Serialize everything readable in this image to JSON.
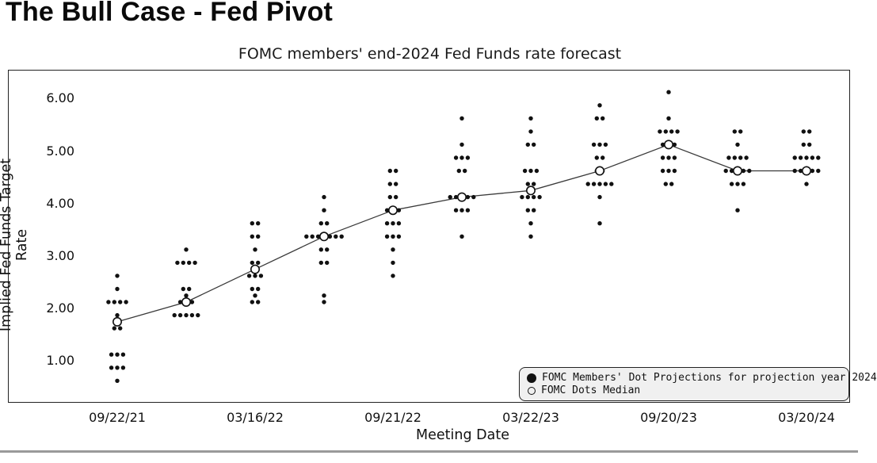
{
  "page_title": "The Bull Case - Fed Pivot",
  "chart_data": {
    "type": "scatter",
    "title": "FOMC members' end-2024 Fed Funds rate forecast",
    "xlabel": "Meeting Date",
    "ylabel": "Implied Fed Funds Target Rate",
    "ylim": [
      0.4,
      6.45
    ],
    "grid": false,
    "y_ticks": [
      "1.00",
      "2.00",
      "3.00",
      "4.00",
      "5.00",
      "6.00"
    ],
    "x_tick_labels": [
      "09/22/21",
      "03/16/22",
      "09/21/22",
      "03/22/23",
      "09/20/23",
      "03/20/24"
    ],
    "legend_position": "bottom-right",
    "legend": [
      {
        "marker": "filled-dot",
        "label": "FOMC Members' Dot Projections for projection year 2024"
      },
      {
        "marker": "open-circle",
        "label": "FOMC Dots Median"
      }
    ],
    "series_note": "dots = [rate, member_count] per meeting; median drawn as open circle and connected line",
    "meetings": [
      {
        "x_label": "09/22/21",
        "median": 1.75,
        "dots": [
          [
            2.625,
            1
          ],
          [
            2.375,
            1
          ],
          [
            2.125,
            4
          ],
          [
            1.875,
            1
          ],
          [
            1.625,
            2
          ],
          [
            1.125,
            3
          ],
          [
            0.875,
            3
          ],
          [
            0.625,
            1
          ]
        ]
      },
      {
        "x_label": "",
        "median": 2.125,
        "dots": [
          [
            3.125,
            1
          ],
          [
            2.875,
            4
          ],
          [
            2.375,
            2
          ],
          [
            2.25,
            1
          ],
          [
            2.125,
            3
          ],
          [
            1.875,
            5
          ]
        ]
      },
      {
        "x_label": "03/16/22",
        "median": 2.75,
        "dots": [
          [
            3.625,
            2
          ],
          [
            3.375,
            2
          ],
          [
            3.125,
            1
          ],
          [
            2.875,
            2
          ],
          [
            2.625,
            3
          ],
          [
            2.375,
            2
          ],
          [
            2.25,
            1
          ],
          [
            2.125,
            2
          ]
        ]
      },
      {
        "x_label": "",
        "median": 3.375,
        "dots": [
          [
            4.125,
            1
          ],
          [
            3.875,
            1
          ],
          [
            3.625,
            2
          ],
          [
            3.375,
            7
          ],
          [
            3.125,
            2
          ],
          [
            2.875,
            2
          ],
          [
            2.25,
            1
          ],
          [
            2.125,
            1
          ]
        ]
      },
      {
        "x_label": "09/21/22",
        "median": 3.875,
        "dots": [
          [
            4.625,
            2
          ],
          [
            4.375,
            2
          ],
          [
            4.125,
            2
          ],
          [
            3.875,
            3
          ],
          [
            3.625,
            3
          ],
          [
            3.375,
            3
          ],
          [
            3.125,
            1
          ],
          [
            2.875,
            1
          ],
          [
            2.625,
            1
          ]
        ]
      },
      {
        "x_label": "",
        "median": 4.125,
        "dots": [
          [
            5.625,
            1
          ],
          [
            5.125,
            1
          ],
          [
            4.875,
            3
          ],
          [
            4.625,
            2
          ],
          [
            4.125,
            5
          ],
          [
            3.875,
            3
          ],
          [
            3.375,
            1
          ]
        ]
      },
      {
        "x_label": "03/22/23",
        "median": 4.25,
        "dots": [
          [
            5.625,
            1
          ],
          [
            5.375,
            1
          ],
          [
            5.125,
            2
          ],
          [
            4.625,
            3
          ],
          [
            4.375,
            2
          ],
          [
            4.125,
            4
          ],
          [
            3.875,
            2
          ],
          [
            3.625,
            1
          ],
          [
            3.375,
            1
          ]
        ]
      },
      {
        "x_label": "",
        "median": 4.625,
        "dots": [
          [
            5.875,
            1
          ],
          [
            5.625,
            2
          ],
          [
            5.125,
            3
          ],
          [
            4.875,
            2
          ],
          [
            4.625,
            2
          ],
          [
            4.375,
            5
          ],
          [
            4.125,
            1
          ],
          [
            3.625,
            1
          ]
        ]
      },
      {
        "x_label": "09/20/23",
        "median": 5.125,
        "dots": [
          [
            6.125,
            1
          ],
          [
            5.625,
            1
          ],
          [
            5.375,
            4
          ],
          [
            5.125,
            3
          ],
          [
            4.875,
            3
          ],
          [
            4.625,
            3
          ],
          [
            4.375,
            2
          ]
        ]
      },
      {
        "x_label": "",
        "median": 4.625,
        "dots": [
          [
            5.375,
            2
          ],
          [
            5.125,
            1
          ],
          [
            4.875,
            4
          ],
          [
            4.625,
            5
          ],
          [
            4.375,
            3
          ],
          [
            3.875,
            1
          ]
        ]
      },
      {
        "x_label": "03/20/24",
        "median": 4.625,
        "dots": [
          [
            5.375,
            2
          ],
          [
            5.125,
            2
          ],
          [
            4.875,
            5
          ],
          [
            4.625,
            5
          ],
          [
            4.375,
            1
          ]
        ]
      }
    ]
  },
  "colors": {
    "ink": "#111111",
    "median_line": "#3a3a3a",
    "panel_border": "#222222",
    "legend_bg": "#f0f0f0",
    "bottom_rule": "#9a9a9a"
  }
}
